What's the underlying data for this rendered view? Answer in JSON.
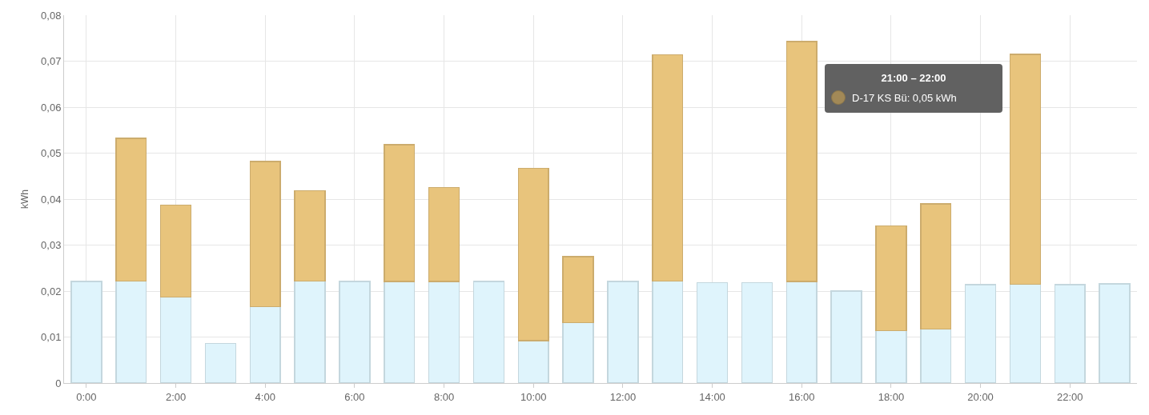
{
  "chart_data": {
    "type": "bar",
    "stacked": true,
    "ylabel": "kWh",
    "categories": [
      "0:00",
      null,
      "2:00",
      null,
      "4:00",
      null,
      "6:00",
      null,
      "8:00",
      null,
      "10:00",
      null,
      "12:00",
      null,
      "14:00",
      null,
      "16:00",
      null,
      "18:00",
      null,
      "20:00",
      null,
      "22:00",
      null
    ],
    "series": [
      {
        "color": "#dff4fc",
        "values": [
          0.0221,
          0.0222,
          0.0187,
          0.0086,
          0.0166,
          0.0222,
          0.0221,
          0.0221,
          0.0221,
          0.0221,
          0.0092,
          0.0131,
          0.0221,
          0.0222,
          0.0218,
          0.0218,
          0.0221,
          0.02,
          0.0114,
          0.0117,
          0.0214,
          0.0215,
          0.0214,
          0.0216
        ]
      },
      {
        "color": "#e8c47c",
        "values": [
          null,
          0.031,
          0.02,
          null,
          0.0316,
          0.0196,
          null,
          0.0297,
          0.0204,
          null,
          0.0375,
          0.0144,
          null,
          0.0492,
          null,
          null,
          0.0522,
          null,
          0.0228,
          0.0273,
          null,
          0.05,
          null,
          null
        ]
      }
    ],
    "ylim": [
      0,
      0.08
    ],
    "yticks": [
      {
        "value": 0,
        "label": "0"
      },
      {
        "value": 0.01,
        "label": "0,01"
      },
      {
        "value": 0.02,
        "label": "0,02"
      },
      {
        "value": 0.03,
        "label": "0,03"
      },
      {
        "value": 0.04,
        "label": "0,04"
      },
      {
        "value": 0.05,
        "label": "0,05"
      },
      {
        "value": 0.06,
        "label": "0,06"
      },
      {
        "value": 0.07,
        "label": "0,07"
      },
      {
        "value": 0.08,
        "label": "0,08"
      }
    ],
    "grid": true,
    "legend": false,
    "annotations": [
      "21:00 – 22:00",
      "D-17 KS Bü: 0,05 kWh"
    ]
  }
}
